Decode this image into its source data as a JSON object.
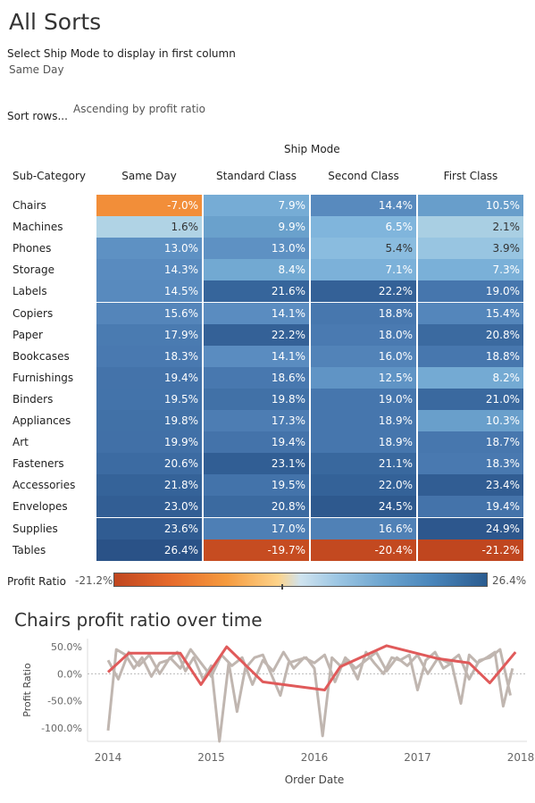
{
  "title": "All Sorts",
  "parameter": {
    "label": "Select Ship Mode to display in first column",
    "value": "Same Day"
  },
  "sort": {
    "label": "Sort rows...",
    "value": "Ascending by profit ratio"
  },
  "heatmap": {
    "column_group_header": "Ship Mode",
    "row_header": "Sub-Category",
    "columns": [
      "Same Day",
      "Standard Class",
      "Second Class",
      "First Class"
    ],
    "rows": [
      {
        "name": "Chairs",
        "values": [
          "-7.0%",
          "7.9%",
          "14.4%",
          "10.5%"
        ]
      },
      {
        "name": "Machines",
        "values": [
          "1.6%",
          "9.9%",
          "6.5%",
          "2.1%"
        ]
      },
      {
        "name": "Phones",
        "values": [
          "13.0%",
          "13.0%",
          "5.4%",
          "3.9%"
        ]
      },
      {
        "name": "Storage",
        "values": [
          "14.3%",
          "8.4%",
          "7.1%",
          "7.3%"
        ]
      },
      {
        "name": "Labels",
        "values": [
          "14.5%",
          "21.6%",
          "22.2%",
          "19.0%"
        ]
      },
      {
        "name": "Copiers",
        "values": [
          "15.6%",
          "14.1%",
          "18.8%",
          "15.4%"
        ]
      },
      {
        "name": "Paper",
        "values": [
          "17.9%",
          "22.2%",
          "18.0%",
          "20.8%"
        ]
      },
      {
        "name": "Bookcases",
        "values": [
          "18.3%",
          "14.1%",
          "16.0%",
          "18.8%"
        ]
      },
      {
        "name": "Furnishings",
        "values": [
          "19.4%",
          "18.6%",
          "12.5%",
          "8.2%"
        ]
      },
      {
        "name": "Binders",
        "values": [
          "19.5%",
          "19.8%",
          "19.0%",
          "21.0%"
        ]
      },
      {
        "name": "Appliances",
        "values": [
          "19.8%",
          "17.3%",
          "18.9%",
          "10.3%"
        ]
      },
      {
        "name": "Art",
        "values": [
          "19.9%",
          "19.4%",
          "18.9%",
          "18.7%"
        ]
      },
      {
        "name": "Fasteners",
        "values": [
          "20.6%",
          "23.1%",
          "21.1%",
          "18.3%"
        ]
      },
      {
        "name": "Accessories",
        "values": [
          "21.8%",
          "19.5%",
          "22.0%",
          "23.4%"
        ]
      },
      {
        "name": "Envelopes",
        "values": [
          "23.0%",
          "20.8%",
          "24.5%",
          "19.4%"
        ]
      },
      {
        "name": "Supplies",
        "values": [
          "23.6%",
          "17.0%",
          "16.6%",
          "24.9%"
        ]
      },
      {
        "name": "Tables",
        "values": [
          "26.4%",
          "-19.7%",
          "-20.4%",
          "-21.2%"
        ]
      }
    ]
  },
  "legend": {
    "label": "Profit Ratio",
    "min": "-21.2%",
    "max": "26.4%"
  },
  "chart_data": {
    "type": "line",
    "title": "Chairs profit ratio over time",
    "xlabel": "Order Date",
    "ylabel": "Profit Ratio",
    "xlim": [
      2014,
      2018
    ],
    "ylim": [
      -125,
      65
    ],
    "x_ticks": [
      "2014",
      "2015",
      "2016",
      "2017",
      "2018"
    ],
    "y_ticks": [
      "50.0%",
      "0.0%",
      "-50.0%",
      "-100.0%"
    ],
    "highlight_color": "#e05a5a",
    "background_color": "#c0b6b0",
    "series": [
      {
        "highlighted": true,
        "x": [
          2014.0,
          2014.2,
          2014.7,
          2014.9,
          2015.15,
          2015.5,
          2016.1,
          2016.25,
          2016.7,
          2017.2,
          2017.5,
          2017.7,
          2017.95
        ],
        "y": [
          3,
          38,
          38,
          -20,
          50,
          -15,
          -30,
          13,
          52,
          28,
          20,
          -17,
          40
        ]
      },
      {
        "x": [
          2014.0,
          2014.08,
          2014.17,
          2014.25,
          2014.33,
          2014.42,
          2014.5,
          2014.58,
          2014.67,
          2014.75,
          2014.83,
          2014.92,
          2015.0,
          2015.08,
          2015.17,
          2015.25,
          2015.33,
          2015.42,
          2015.5,
          2015.58,
          2015.67,
          2015.75,
          2015.83,
          2015.92,
          2016.0,
          2016.08,
          2016.17,
          2016.25,
          2016.33,
          2016.42,
          2016.5,
          2016.58,
          2016.67,
          2016.75,
          2016.83,
          2016.92,
          2017.0,
          2017.08,
          2017.17,
          2017.25,
          2017.33,
          2017.42,
          2017.5,
          2017.58,
          2017.67,
          2017.75,
          2017.83,
          2017.92
        ],
        "y": [
          -105,
          45,
          35,
          10,
          30,
          -5,
          20,
          25,
          40,
          5,
          30,
          -10,
          15,
          -125,
          20,
          -70,
          10,
          30,
          35,
          0,
          -40,
          20,
          25,
          30,
          10,
          -115,
          30,
          15,
          25,
          -10,
          40,
          20,
          0,
          30,
          25,
          35,
          -30,
          25,
          40,
          10,
          20,
          -55,
          35,
          20,
          30,
          40,
          -60,
          10
        ]
      },
      {
        "x": [
          2014.0,
          2014.1,
          2014.2,
          2014.3,
          2014.4,
          2014.5,
          2014.6,
          2014.7,
          2014.8,
          2014.9,
          2015.0,
          2015.1,
          2015.2,
          2015.3,
          2015.4,
          2015.5,
          2015.6,
          2015.7,
          2015.8,
          2015.9,
          2016.0,
          2016.1,
          2016.2,
          2016.3,
          2016.4,
          2016.5,
          2016.6,
          2016.7,
          2016.8,
          2016.9,
          2017.0,
          2017.1,
          2017.2,
          2017.3,
          2017.4,
          2017.5,
          2017.6,
          2017.7,
          2017.8,
          2017.9
        ],
        "y": [
          25,
          -10,
          40,
          15,
          35,
          0,
          30,
          10,
          45,
          20,
          -5,
          35,
          15,
          30,
          -20,
          25,
          5,
          40,
          10,
          30,
          20,
          35,
          -15,
          30,
          10,
          25,
          40,
          5,
          30,
          15,
          35,
          0,
          30,
          20,
          35,
          -10,
          25,
          30,
          45,
          -40
        ]
      }
    ]
  }
}
